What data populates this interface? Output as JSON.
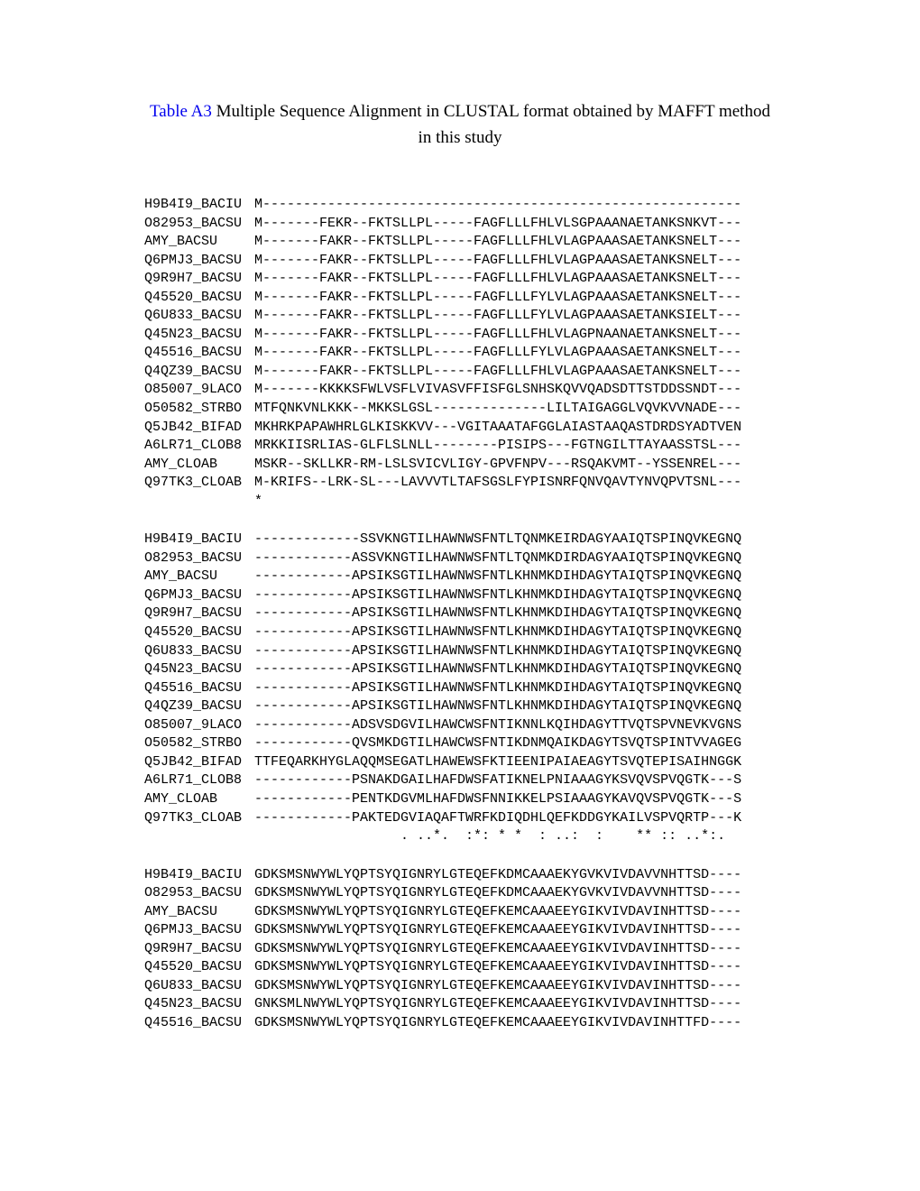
{
  "title_link": "Table A3",
  "title_rest": " Multiple Sequence Alignment in CLUSTAL format obtained by MAFFT method in this study",
  "blocks": [
    {
      "rows": [
        {
          "id": "H9B4I9_BACIU",
          "seq": "M-----------------------------------------------------------"
        },
        {
          "id": "O82953_BACSU",
          "seq": "M-------FEKR--FKTSLLPL-----FAGFLLLFHLVLSGPAAANAETANKSNKVT---"
        },
        {
          "id": "AMY_BACSU",
          "seq": "M-------FAKR--FKTSLLPL-----FAGFLLLFHLVLAGPAAASAETANKSNELT---"
        },
        {
          "id": "Q6PMJ3_BACSU",
          "seq": "M-------FAKR--FKTSLLPL-----FAGFLLLFHLVLAGPAAASAETANKSNELT---"
        },
        {
          "id": "Q9R9H7_BACSU",
          "seq": "M-------FAKR--FKTSLLPL-----FAGFLLLFHLVLAGPAAASAETANKSNELT---"
        },
        {
          "id": "Q45520_BACSU",
          "seq": "M-------FAKR--FKTSLLPL-----FAGFLLLFYLVLAGPAAASAETANKSNELT---"
        },
        {
          "id": "Q6U833_BACSU",
          "seq": "M-------FAKR--FKTSLLPL-----FAGFLLLFYLVLAGPAAASAETANKSIELT---"
        },
        {
          "id": "Q45N23_BACSU",
          "seq": "M-------FAKR--FKTSLLPL-----FAGFLLLFHLVLAGPNAANAETANKSNELT---"
        },
        {
          "id": "Q45516_BACSU",
          "seq": "M-------FAKR--FKTSLLPL-----FAGFLLLFYLVLAGPAAASAETANKSNELT---"
        },
        {
          "id": "Q4QZ39_BACSU",
          "seq": "M-------FAKR--FKTSLLPL-----FAGFLLLFHLVLAGPAAASAETANKSNELT---"
        },
        {
          "id": "O85007_9LACO",
          "seq": "M-------KKKKSFWLVSFLVIVASVFFISFGLSNHSKQVVQADSDTTSTDDSSNDT---"
        },
        {
          "id": "O50582_STRBO",
          "seq": "MTFQNKVNLKKK--MKKSLGSL--------------LILTAIGAGGLVQVKVVNADE---"
        },
        {
          "id": "Q5JB42_BIFAD",
          "seq": "MKHRKPAPAWHRLGLKISKKVV---VGITAAATAFGGLAIASTAAQASTDRDSYADTVEN"
        },
        {
          "id": "A6LR71_CLOB8",
          "seq": "MRKKIISRLIAS-GLFLSLNLL--------PISIPS---FGTNGILTTAYAASSTSL---"
        },
        {
          "id": "AMY_CLOAB",
          "seq": "MSKR--SKLLKR-RM-LSLSVICVLIGY-GPVFNPV---RSQAKVMT--YSSENREL---"
        },
        {
          "id": "Q97TK3_CLOAB",
          "seq": "M-KRIFS--LRK-SL---LAVVVTLTAFSGSLFYPISNRFQNVQAVTYNVQPVTSNL---"
        }
      ],
      "conservation": "*"
    },
    {
      "rows": [
        {
          "id": "H9B4I9_BACIU",
          "seq": "-------------SSVKNGTILHAWNWSFNTLTQNMKEIRDAGYAAIQTSPINQVKEGNQ"
        },
        {
          "id": "O82953_BACSU",
          "seq": "------------ASSVKNGTILHAWNWSFNTLTQNMKDIRDAGYAAIQTSPINQVKEGNQ"
        },
        {
          "id": "AMY_BACSU",
          "seq": "------------APSIKSGTILHAWNWSFNTLKHNMKDIHDAGYTAIQTSPINQVKEGNQ"
        },
        {
          "id": "Q6PMJ3_BACSU",
          "seq": "------------APSIKSGTILHAWNWSFNTLKHNMKDIHDAGYTAIQTSPINQVKEGNQ"
        },
        {
          "id": "Q9R9H7_BACSU",
          "seq": "------------APSIKSGTILHAWNWSFNTLKHNMKDIHDAGYTAIQTSPINQVKEGNQ"
        },
        {
          "id": "Q45520_BACSU",
          "seq": "------------APSIKSGTILHAWNWSFNTLKHNMKDIHDAGYTAIQTSPINQVKEGNQ"
        },
        {
          "id": "Q6U833_BACSU",
          "seq": "------------APSIKSGTILHAWNWSFNTLKHNMKDIHDAGYTAIQTSPINQVKEGNQ"
        },
        {
          "id": "Q45N23_BACSU",
          "seq": "------------APSIKSGTILHAWNWSFNTLKHNMKDIHDAGYTAIQTSPINQVKEGNQ"
        },
        {
          "id": "Q45516_BACSU",
          "seq": "------------APSIKSGTILHAWNWSFNTLKHNMKDIHDAGYTAIQTSPINQVKEGNQ"
        },
        {
          "id": "Q4QZ39_BACSU",
          "seq": "------------APSIKSGTILHAWNWSFNTLKHNMKDIHDAGYTAIQTSPINQVKEGNQ"
        },
        {
          "id": "O85007_9LACO",
          "seq": "------------ADSVSDGVILHAWCWSFNTIKNNLKQIHDAGYTTVQTSPVNEVKVGNS"
        },
        {
          "id": "O50582_STRBO",
          "seq": "------------QVSMKDGTILHAWCWSFNTIKDNMQAIKDAGYTSVQTSPINTVVAGEG"
        },
        {
          "id": "Q5JB42_BIFAD",
          "seq": "TTFEQARKHYGLAQQMSEGATLHAWEWSFKTIEENIPAIAEAGYTSVQTEPISAIHNGGK"
        },
        {
          "id": "A6LR71_CLOB8",
          "seq": "------------PSNAKDGAILHAFDWSFATIKNELPNIAAAGYKSVQVSPVQGTK---S"
        },
        {
          "id": "AMY_CLOAB",
          "seq": "------------PENTKDGVMLHAFDWSFNNIKKELPSIAAAGYKAVQVSPVQGTK---S"
        },
        {
          "id": "Q97TK3_CLOAB",
          "seq": "------------PAKTEDGVIAQAFTWRFKDIQDHLQEFKDDGYKAILVSPVQRTP---K"
        }
      ],
      "conservation": "                  . ..*.  :*: * *  : ..:  :    ** :: ..*:."
    },
    {
      "rows": [
        {
          "id": "H9B4I9_BACIU",
          "seq": "GDKSMSNWYWLYQPTSYQIGNRYLGTEQEFKDMCAAAEKYGVKVIVDAVVNHTTSD----"
        },
        {
          "id": "O82953_BACSU",
          "seq": "GDKSMSNWYWLYQPTSYQIGNRYLGTEQEFKDMCAAAEKYGVKVIVDAVVNHTTSD----"
        },
        {
          "id": "AMY_BACSU",
          "seq": "GDKSMSNWYWLYQPTSYQIGNRYLGTEQEFKEMCAAAEEYGIKVIVDAVINHTTSD----"
        },
        {
          "id": "Q6PMJ3_BACSU",
          "seq": "GDKSMSNWYWLYQPTSYQIGNRYLGTEQEFKEMCAAAEEYGIKVIVDAVINHTTSD----"
        },
        {
          "id": "Q9R9H7_BACSU",
          "seq": "GDKSMSNWYWLYQPTSYQIGNRYLGTEQEFKEMCAAAEEYGIKVIVDAVINHTTSD----"
        },
        {
          "id": "Q45520_BACSU",
          "seq": "GDKSMSNWYWLYQPTSYQIGNRYLGTEQEFKEMCAAAEEYGIKVIVDAVINHTTSD----"
        },
        {
          "id": "Q6U833_BACSU",
          "seq": "GDKSMSNWYWLYQPTSYQIGNRYLGTEQEFKEMCAAAEEYGIKVIVDAVINHTTSD----"
        },
        {
          "id": "Q45N23_BACSU",
          "seq": "GNKSMLNWYWLYQPTSYQIGNRYLGTEQEFKEMCAAAEEYGIKVIVDAVINHTTSD----"
        },
        {
          "id": "Q45516_BACSU",
          "seq": "GDKSMSNWYWLYQPTSYQIGNRYLGTEQEFKEMCAAAEEYGIKVIVDAVINHTTFD----"
        }
      ],
      "conservation": ""
    }
  ]
}
